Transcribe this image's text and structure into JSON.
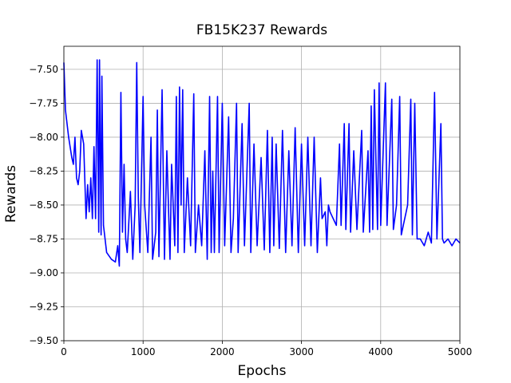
{
  "chart_data": {
    "type": "line",
    "title": "FB15K237 Rewards",
    "x_label": "Epochs",
    "y_label": "Rewards",
    "grid": true,
    "xlim": [
      0,
      5000
    ],
    "xticks": [
      0,
      1000,
      2000,
      3000,
      4000,
      5000
    ],
    "ylim": [
      -9.5,
      -7.33
    ],
    "yticks": [
      {
        "value": -7.5,
        "label": "−7.50"
      },
      {
        "value": -7.75,
        "label": "−7.75"
      },
      {
        "value": -8.0,
        "label": "−8.00"
      },
      {
        "value": -8.25,
        "label": "−8.25"
      },
      {
        "value": -8.5,
        "label": "−8.50"
      },
      {
        "value": -8.75,
        "label": "−8.75"
      },
      {
        "value": -9.0,
        "label": "−9.00"
      },
      {
        "value": -9.25,
        "label": "−9.25"
      },
      {
        "value": -9.5,
        "label": "−9.50"
      }
    ],
    "x": [
      0,
      20,
      60,
      100,
      120,
      140,
      160,
      180,
      200,
      220,
      250,
      280,
      300,
      320,
      340,
      360,
      380,
      400,
      420,
      440,
      450,
      470,
      480,
      500,
      540,
      600,
      650,
      680,
      700,
      720,
      740,
      760,
      780,
      800,
      840,
      870,
      900,
      920,
      940,
      960,
      1000,
      1020,
      1060,
      1100,
      1120,
      1160,
      1180,
      1200,
      1240,
      1270,
      1300,
      1340,
      1360,
      1400,
      1420,
      1440,
      1460,
      1480,
      1500,
      1520,
      1560,
      1600,
      1640,
      1660,
      1700,
      1740,
      1780,
      1810,
      1840,
      1860,
      1880,
      1900,
      1940,
      1960,
      2000,
      2030,
      2080,
      2110,
      2140,
      2180,
      2200,
      2250,
      2280,
      2340,
      2360,
      2400,
      2440,
      2490,
      2530,
      2570,
      2600,
      2630,
      2650,
      2680,
      2720,
      2760,
      2800,
      2840,
      2880,
      2920,
      2960,
      3000,
      3040,
      3080,
      3120,
      3160,
      3200,
      3240,
      3260,
      3300,
      3320,
      3340,
      3360,
      3400,
      3440,
      3480,
      3500,
      3540,
      3560,
      3600,
      3620,
      3660,
      3700,
      3760,
      3780,
      3840,
      3860,
      3880,
      3900,
      3920,
      3960,
      3980,
      4000,
      4060,
      4080,
      4140,
      4160,
      4200,
      4240,
      4260,
      4340,
      4380,
      4400,
      4430,
      4460,
      4500,
      4550,
      4600,
      4640,
      4680,
      4710,
      4760,
      4780,
      4800,
      4850,
      4900,
      4950,
      5000
    ],
    "series": [
      {
        "color": "#0000ff",
        "values": [
          -7.45,
          -7.8,
          -8.0,
          -8.15,
          -8.2,
          -8.0,
          -8.3,
          -8.35,
          -8.25,
          -7.95,
          -8.05,
          -8.6,
          -8.35,
          -8.55,
          -8.3,
          -8.6,
          -8.07,
          -8.6,
          -7.43,
          -8.7,
          -7.43,
          -8.72,
          -7.55,
          -8.65,
          -8.85,
          -8.9,
          -8.92,
          -8.8,
          -8.95,
          -7.67,
          -8.7,
          -8.2,
          -8.75,
          -8.85,
          -8.4,
          -8.9,
          -8.5,
          -7.45,
          -8.45,
          -8.85,
          -7.7,
          -8.5,
          -8.85,
          -8.0,
          -8.9,
          -8.7,
          -7.8,
          -8.88,
          -7.65,
          -8.9,
          -8.1,
          -8.9,
          -8.2,
          -8.8,
          -7.7,
          -8.85,
          -7.63,
          -8.5,
          -7.65,
          -8.85,
          -8.3,
          -8.8,
          -7.68,
          -8.85,
          -8.5,
          -8.8,
          -8.1,
          -8.9,
          -7.7,
          -8.85,
          -8.25,
          -8.85,
          -7.7,
          -8.85,
          -7.75,
          -8.8,
          -7.85,
          -8.85,
          -8.6,
          -7.75,
          -8.85,
          -7.9,
          -8.8,
          -7.75,
          -8.85,
          -8.05,
          -8.8,
          -8.15,
          -8.83,
          -7.95,
          -8.85,
          -8.0,
          -8.8,
          -8.05,
          -8.82,
          -7.95,
          -8.85,
          -8.1,
          -8.8,
          -7.93,
          -8.85,
          -8.05,
          -8.8,
          -8.0,
          -8.8,
          -8.0,
          -8.85,
          -8.3,
          -8.6,
          -8.55,
          -8.8,
          -8.5,
          -8.55,
          -8.6,
          -8.65,
          -8.05,
          -8.65,
          -7.9,
          -8.68,
          -7.9,
          -8.7,
          -8.1,
          -8.68,
          -7.95,
          -8.7,
          -8.1,
          -8.7,
          -7.77,
          -8.68,
          -7.65,
          -8.68,
          -7.6,
          -8.65,
          -7.6,
          -8.65,
          -7.72,
          -8.68,
          -8.5,
          -7.7,
          -8.72,
          -8.5,
          -7.72,
          -8.72,
          -7.75,
          -8.75,
          -8.75,
          -8.8,
          -8.7,
          -8.78,
          -7.67,
          -8.75,
          -7.9,
          -8.75,
          -8.78,
          -8.75,
          -8.8,
          -8.75,
          -8.78
        ]
      }
    ]
  }
}
